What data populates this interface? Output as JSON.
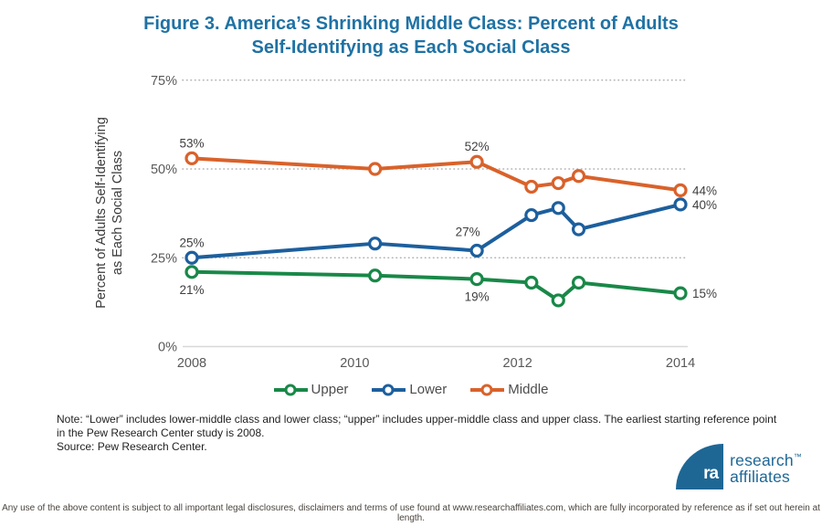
{
  "title": {
    "line1": "Figure 3. America’s Shrinking Middle Class: Percent of Adults",
    "line2": "Self-Identifying as Each Social Class"
  },
  "chart_data": {
    "type": "line",
    "title": "Figure 3. America’s Shrinking Middle Class: Percent of Adults Self-Identifying as Each Social Class",
    "ylabel": "Percent of Adults Self-Identifying as Each Social Class",
    "ylabel_line1": "Percent of Adults Self-Identifying",
    "ylabel_line2": "as Each Social Class",
    "xlabel": "",
    "x": [
      2008,
      2010.25,
      2011.5,
      2012.17,
      2012.5,
      2012.75,
      2014
    ],
    "xticks": [
      2008,
      2010,
      2012,
      2014
    ],
    "yticks": [
      {
        "value": 0,
        "label": "0%"
      },
      {
        "value": 25,
        "label": "25%"
      },
      {
        "value": 50,
        "label": "50%"
      },
      {
        "value": 75,
        "label": "75%"
      }
    ],
    "ylim": [
      0,
      77
    ],
    "grid": "dotted-horizontal",
    "legend_position": "bottom-center",
    "legend": [
      "Upper",
      "Lower",
      "Middle"
    ],
    "series": [
      {
        "name": "Middle",
        "color": "#d9622b",
        "values": [
          53,
          50,
          52,
          45,
          46,
          48,
          44
        ]
      },
      {
        "name": "Lower",
        "color": "#1d5f9d",
        "values": [
          25,
          29,
          27,
          37,
          39,
          33,
          40
        ]
      },
      {
        "name": "Upper",
        "color": "#198848",
        "values": [
          21,
          20,
          19,
          18,
          13,
          18,
          15
        ]
      }
    ],
    "point_labels": [
      {
        "series": "Middle",
        "index": 0,
        "text": "53%",
        "placement": "above"
      },
      {
        "series": "Lower",
        "index": 0,
        "text": "25%",
        "placement": "above"
      },
      {
        "series": "Upper",
        "index": 0,
        "text": "21%",
        "placement": "below"
      },
      {
        "series": "Middle",
        "index": 2,
        "text": "52%",
        "placement": "above"
      },
      {
        "series": "Lower",
        "index": 2,
        "text": "27%",
        "placement": "above-left"
      },
      {
        "series": "Upper",
        "index": 2,
        "text": "19%",
        "placement": "below"
      },
      {
        "series": "Middle",
        "index": 6,
        "text": "44%",
        "placement": "right"
      },
      {
        "series": "Lower",
        "index": 6,
        "text": "40%",
        "placement": "right"
      },
      {
        "series": "Upper",
        "index": 6,
        "text": "15%",
        "placement": "right"
      }
    ]
  },
  "note": {
    "text": "Note: “Lower” includes lower-middle class and lower class; “upper” includes upper-middle class and upper class. The earliest starting reference point in the Pew Research Center study is 2008.",
    "source": "Source: Pew Research Center."
  },
  "logo": {
    "mark": "ra",
    "line1": "research",
    "tm": "™",
    "line2": "affiliates"
  },
  "disclaimer": "Any use of the above content is subject to all important legal disclosures, disclaimers and terms of use found at www.researchaffiliates.com, which are fully incorporated by reference as if set out herein at length.",
  "colors": {
    "title_blue": "#1f72a4",
    "logo_blue": "#1e6795",
    "axis_text": "#595959",
    "data_label_text": "#3f3f3f",
    "grid_dots": "#b0b0b0",
    "baseline": "#d8d8d8",
    "upper_green": "#198848",
    "lower_blue": "#1d5f9d",
    "middle_orange": "#d9622b"
  }
}
